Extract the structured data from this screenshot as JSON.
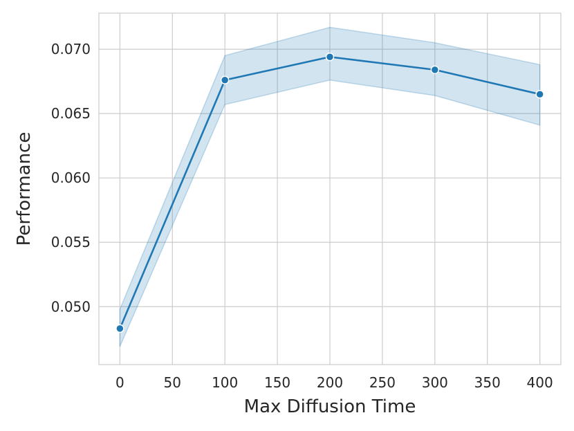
{
  "chart_data": {
    "type": "line",
    "title": "",
    "xlabel": "Max Diffusion Time",
    "ylabel": "Performance",
    "xlim": [
      -20,
      420
    ],
    "ylim": [
      0.0455,
      0.0728
    ],
    "xticks": [
      0,
      50,
      100,
      150,
      200,
      250,
      300,
      350,
      400
    ],
    "xtick_labels": [
      "0",
      "50",
      "100",
      "150",
      "200",
      "250",
      "300",
      "350",
      "400"
    ],
    "yticks": [
      0.05,
      0.055,
      0.06,
      0.065,
      0.07
    ],
    "ytick_labels": [
      "0.050",
      "0.055",
      "0.060",
      "0.065",
      "0.070"
    ],
    "grid": true,
    "legend": "none",
    "series": [
      {
        "x": [
          0,
          100,
          200,
          300,
          400
        ],
        "y": [
          0.0483,
          0.0676,
          0.0694,
          0.0684,
          0.0665
        ],
        "ci_lower": [
          0.0469,
          0.0657,
          0.0676,
          0.0664,
          0.0641
        ],
        "ci_upper": [
          0.0498,
          0.0695,
          0.0717,
          0.0705,
          0.0688
        ],
        "color": "#1f77b4",
        "marker": "circle",
        "band_color": "#1f77b4"
      }
    ]
  }
}
